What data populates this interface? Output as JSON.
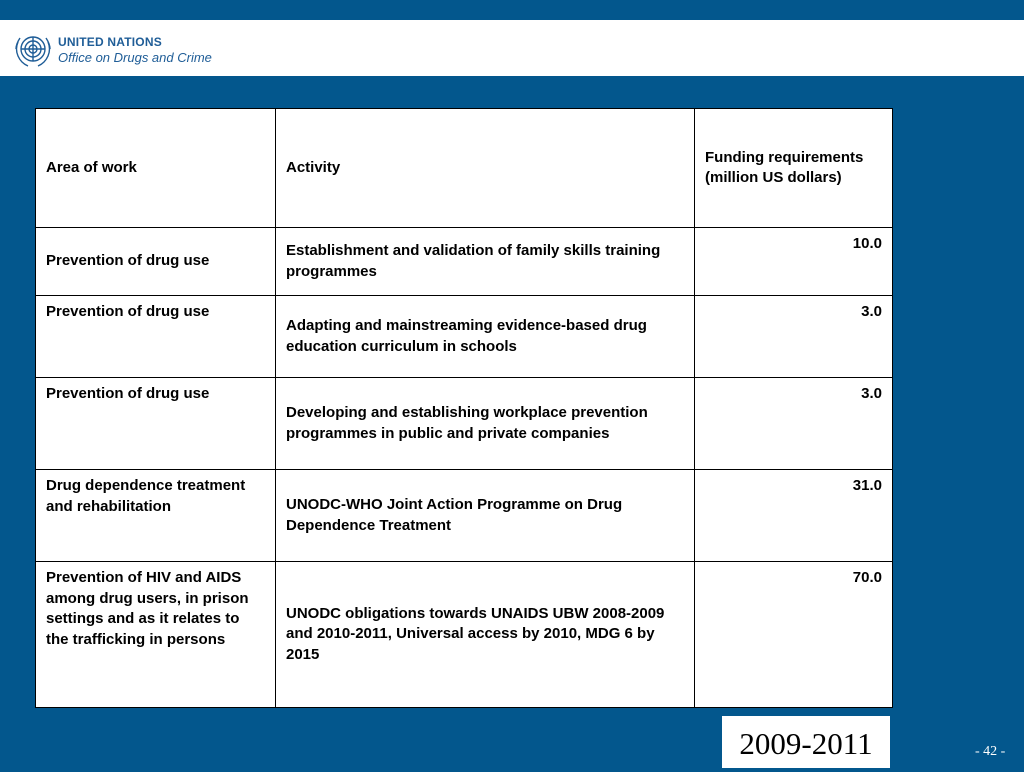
{
  "header": {
    "org_line1": "UNITED NATIONS",
    "org_line2": "Office on Drugs and Crime",
    "logo_icon": "un-emblem-icon"
  },
  "table": {
    "headers": [
      "Area of work",
      "Activity",
      "Funding requirements (million US dollars)"
    ],
    "rows": [
      {
        "area": "Prevention of drug use",
        "activity": "Establishment and validation of family skills training programmes",
        "funding": "10.0"
      },
      {
        "area": "Prevention of drug use",
        "activity": "Adapting and mainstreaming evidence-based drug education curriculum in schools",
        "funding": "3.0"
      },
      {
        "area": "Prevention of drug use",
        "activity": "Developing and establishing workplace prevention programmes in public and private companies",
        "funding": "3.0"
      },
      {
        "area": "Drug dependence treatment and rehabilitation",
        "activity": "UNODC-WHO Joint Action Programme on Drug Dependence Treatment",
        "funding": "31.0"
      },
      {
        "area": "Prevention of HIV and AIDS among drug users, in prison settings and as it relates to the trafficking in persons",
        "activity": "UNODC obligations towards UNAIDS UBW 2008-2009 and 2010-2011, Universal access by 2010, MDG 6 by 2015",
        "funding": "70.0"
      }
    ]
  },
  "footer": {
    "period": "2009-2011",
    "page_number": "- 42 -"
  },
  "colors": {
    "background": "#03578d",
    "header": "#ffffff",
    "org_text": "#1f5d97"
  }
}
